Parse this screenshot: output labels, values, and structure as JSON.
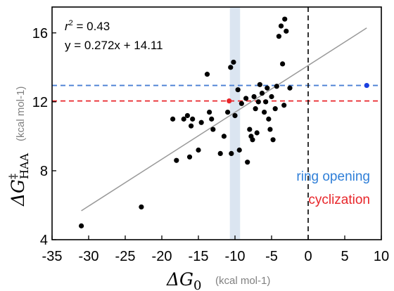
{
  "chart_data": {
    "type": "scatter",
    "xlim": [
      -35,
      10
    ],
    "ylim": [
      4,
      17.5
    ],
    "x_ticks": [
      -35,
      -30,
      -25,
      -20,
      -15,
      -10,
      -5,
      0,
      5,
      10
    ],
    "y_ticks": [
      4,
      8,
      12,
      16
    ],
    "x_tick_labels": [
      "-35",
      "-30",
      "-25",
      "-20",
      "-15",
      "-10",
      "-5",
      "0",
      "5",
      "10"
    ],
    "y_tick_labels": [
      "4",
      "8",
      "12",
      "16"
    ],
    "xlabel": {
      "symbol": "ΔG",
      "subscript": "0",
      "unit": "(kcal mol-1)"
    },
    "ylabel": {
      "symbol": "ΔG",
      "superscript": "‡",
      "subscript": "HAA",
      "unit": "(kcal mol-1)"
    },
    "annotation": {
      "r2_prefix": "r",
      "r2_sup": "2",
      "r2_value": " = 0.43",
      "equation": "y = 0.272x + 14.11"
    },
    "fit": {
      "slope": 0.272,
      "intercept": 14.11,
      "x_range": [
        -31,
        8
      ],
      "color": "#999999"
    },
    "shaded_band": {
      "x_range": [
        -10.7,
        -9.3
      ],
      "color": "#dbe5f1"
    },
    "vline": {
      "x": 0,
      "color": "#000000",
      "style": "dashed"
    },
    "hlines": [
      {
        "y": 12.95,
        "color": "#4a7fd4",
        "label": "ring opening"
      },
      {
        "y": 12.05,
        "color": "#e8262a",
        "label": "cyclization"
      }
    ],
    "series": [
      {
        "color": "#000000",
        "points": [
          [
            -31,
            4.8
          ],
          [
            -22.8,
            5.9
          ],
          [
            -18.5,
            11.0
          ],
          [
            -18,
            8.6
          ],
          [
            -17,
            11.0
          ],
          [
            -16.5,
            11.2
          ],
          [
            -16.2,
            8.8
          ],
          [
            -16,
            10.6
          ],
          [
            -15.8,
            11.0
          ],
          [
            -15,
            9.2
          ],
          [
            -14.6,
            10.8
          ],
          [
            -13.8,
            13.6
          ],
          [
            -13.5,
            11.4
          ],
          [
            -13.2,
            11.0
          ],
          [
            -13,
            10.4
          ],
          [
            -12,
            9.0
          ],
          [
            -11.5,
            10.0
          ],
          [
            -11,
            11.4
          ],
          [
            -10.6,
            14.0
          ],
          [
            -10.5,
            9.0
          ],
          [
            -10.2,
            14.3
          ],
          [
            -10,
            11.2
          ],
          [
            -9.6,
            12.7
          ],
          [
            -9.4,
            9.2
          ],
          [
            -9.1,
            11.9
          ],
          [
            -8.5,
            12.2
          ],
          [
            -8.3,
            8.5
          ],
          [
            -8.0,
            10.4
          ],
          [
            -7.8,
            10.0
          ],
          [
            -7.6,
            9.8
          ],
          [
            -7.4,
            12.3
          ],
          [
            -7.2,
            11.6
          ],
          [
            -7.0,
            10.2
          ],
          [
            -6.8,
            12.0
          ],
          [
            -6.6,
            13.0
          ],
          [
            -6.3,
            12.5
          ],
          [
            -6.0,
            11.4
          ],
          [
            -5.8,
            12.0
          ],
          [
            -5.6,
            12.8
          ],
          [
            -5.4,
            11.0
          ],
          [
            -5.2,
            10.4
          ],
          [
            -5.0,
            12.3
          ],
          [
            -4.8,
            9.8
          ],
          [
            -4.5,
            11.6
          ],
          [
            -4.3,
            12.9
          ],
          [
            -4.0,
            15.8
          ],
          [
            -3.7,
            16.4
          ],
          [
            -3.5,
            14.2
          ],
          [
            -3.3,
            11.8
          ],
          [
            -3.2,
            16.8
          ],
          [
            -3.0,
            16.1
          ],
          [
            -2.5,
            12.8
          ]
        ]
      },
      {
        "color": "#e8262a",
        "points": [
          [
            -10.8,
            12.05
          ]
        ]
      },
      {
        "color": "#1a3fe0",
        "points": [
          [
            8,
            12.95
          ]
        ]
      }
    ]
  }
}
